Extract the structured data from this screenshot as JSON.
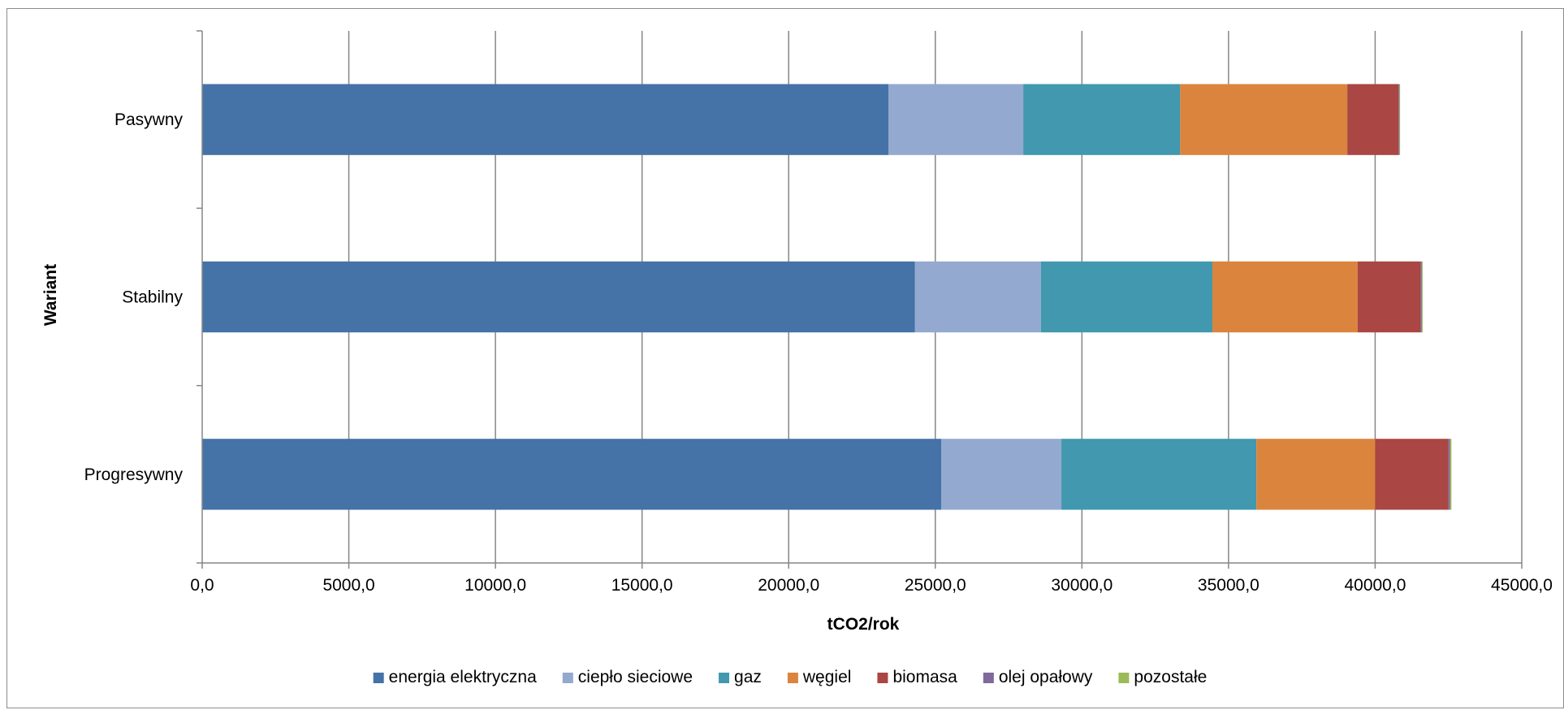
{
  "chart_data": {
    "type": "bar",
    "orientation": "horizontal",
    "stacked": true,
    "categories": [
      "Pasywny",
      "Stabilny",
      "Progresywny"
    ],
    "series": [
      {
        "name": "energia elektryczna",
        "color": "#4572A7",
        "values": [
          23400,
          24300,
          25200
        ]
      },
      {
        "name": "ciepło sieciowe",
        "color": "#93A9CF",
        "values": [
          4600,
          4300,
          4100
        ]
      },
      {
        "name": "gaz",
        "color": "#4198AF",
        "values": [
          5350,
          5850,
          6650
        ]
      },
      {
        "name": "węgiel",
        "color": "#DB843D",
        "values": [
          5700,
          4950,
          4050
        ]
      },
      {
        "name": "biomasa",
        "color": "#AA4643",
        "values": [
          1750,
          2150,
          2500
        ]
      },
      {
        "name": "olej opałowy",
        "color": "#80699B",
        "values": [
          30,
          40,
          50
        ]
      },
      {
        "name": "pozostałe",
        "color": "#9BBB59",
        "values": [
          20,
          30,
          50
        ]
      }
    ],
    "xlabel": "tCO2/rok",
    "ylabel": "Wariant",
    "xlim": [
      0,
      45000
    ],
    "xticks": [
      "0,0",
      "5000,0",
      "10000,0",
      "15000,0",
      "20000,0",
      "25000,0",
      "30000,0",
      "35000,0",
      "40000,0",
      "45000,0"
    ],
    "grid": "vertical major gridlines",
    "legend_position": "bottom"
  }
}
